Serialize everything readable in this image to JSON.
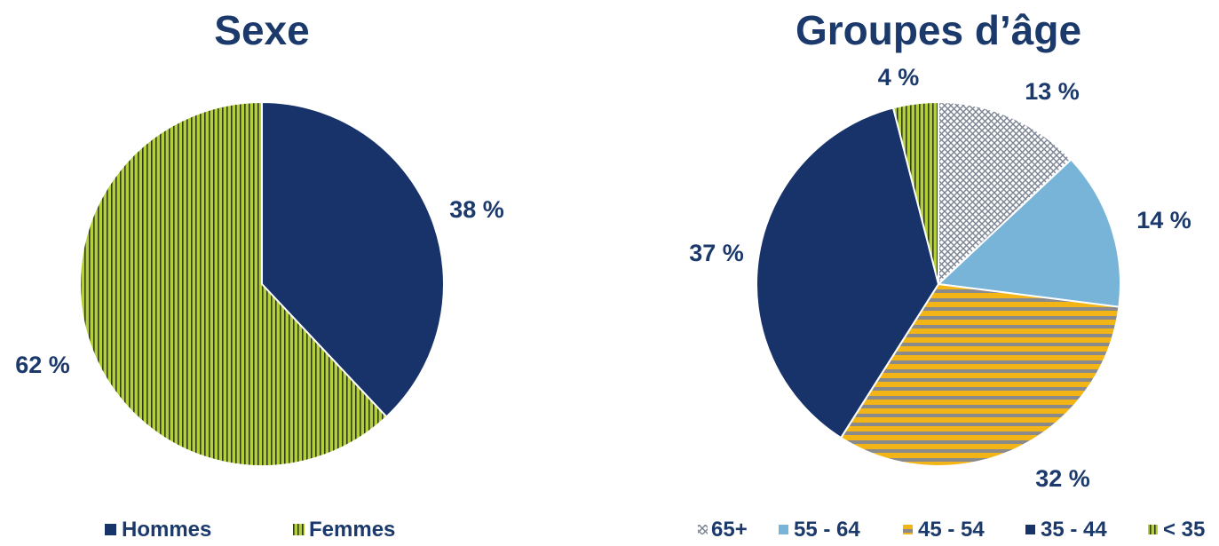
{
  "chart_data": [
    {
      "type": "pie",
      "title": "Sexe",
      "slices": [
        {
          "name": "Hommes",
          "value": 38,
          "label": "38 %",
          "color": "#17336a",
          "pattern": "solid"
        },
        {
          "name": "Femmes",
          "value": 62,
          "label": "62 %",
          "color": "#b5cf3a",
          "pattern": "vertical-stripes"
        }
      ],
      "legend_position": "bottom"
    },
    {
      "type": "pie",
      "title": "Groupes d’âge",
      "slices": [
        {
          "name": "65+",
          "value": 13,
          "label": "13 %",
          "color": "#b6bcc8",
          "pattern": "crosshatch"
        },
        {
          "name": "55 - 64",
          "value": 14,
          "label": "14 %",
          "color": "#78b4d8",
          "pattern": "solid"
        },
        {
          "name": "45 - 54",
          "value": 32,
          "label": "32 %",
          "color": "#f3b415",
          "pattern": "horizontal-stripes"
        },
        {
          "name": "35 - 44",
          "value": 37,
          "label": "37 %",
          "color": "#17336a",
          "pattern": "solid"
        },
        {
          "name": "< 35",
          "value": 4,
          "label": "4 %",
          "color": "#b5cf3a",
          "pattern": "vertical-stripes"
        }
      ],
      "legend_position": "bottom"
    }
  ]
}
